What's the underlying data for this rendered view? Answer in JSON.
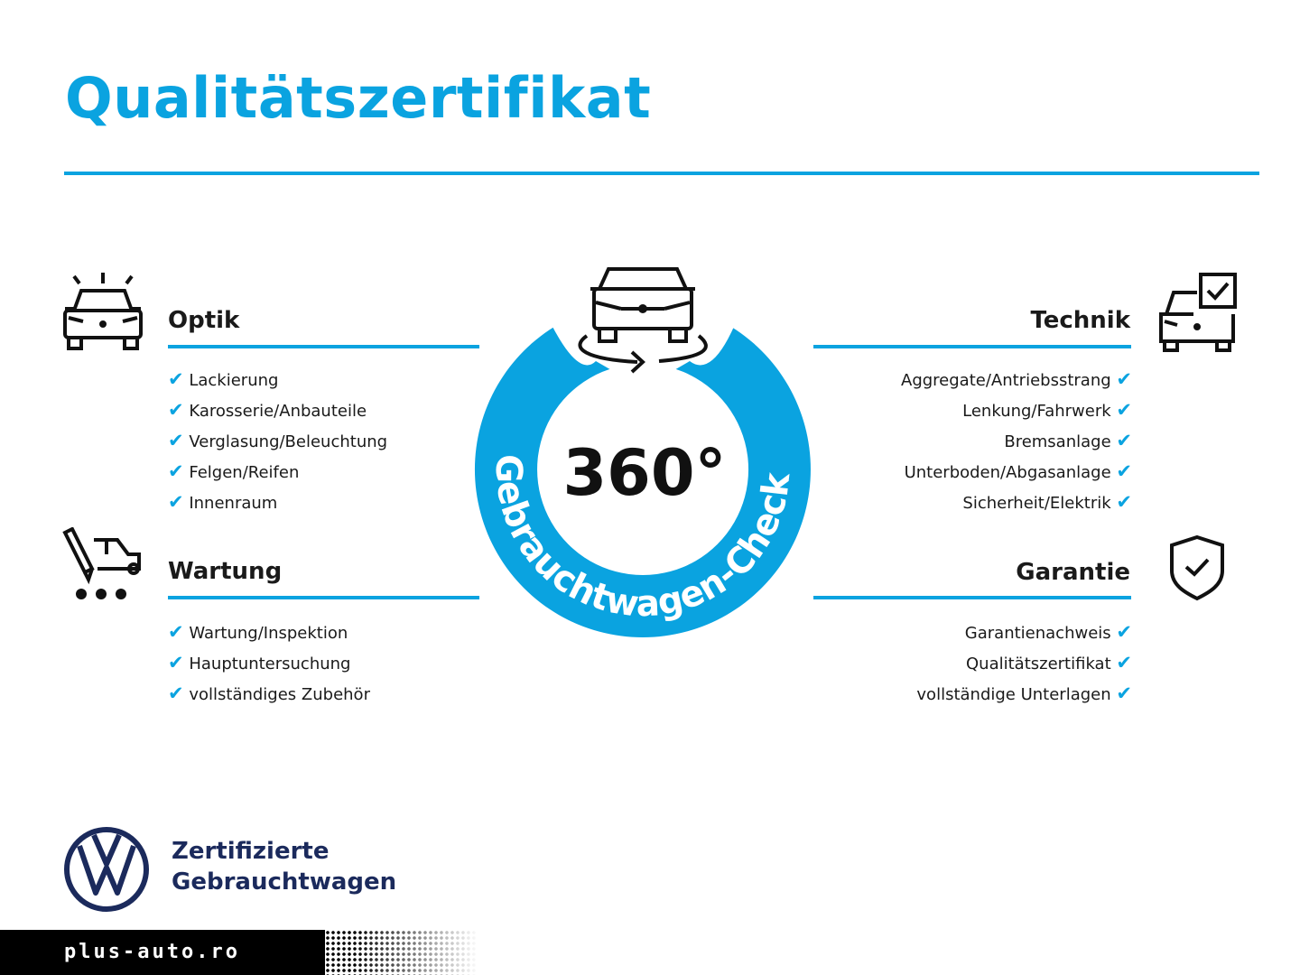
{
  "title": "Qualitätszertifikat",
  "accent_color": "#0aa3e0",
  "center": {
    "degrees": "360°",
    "arc_text": "Gebrauchtwagen-Check"
  },
  "sections": {
    "optik": {
      "title": "Optik",
      "icon": "car-headlights-icon",
      "items": [
        "Lackierung",
        "Karosserie/Anbauteile",
        "Verglasung/Beleuchtung",
        "Felgen/Reifen",
        "Innenraum"
      ]
    },
    "wartung": {
      "title": "Wartung",
      "icon": "car-service-icon",
      "items": [
        "Wartung/Inspektion",
        "Hauptuntersuchung",
        "vollständiges Zubehör"
      ]
    },
    "technik": {
      "title": "Technik",
      "icon": "car-checkbox-icon",
      "items": [
        "Aggregate/Antriebsstrang",
        "Lenkung/Fahrwerk",
        "Bremsanlage",
        "Unterboden/Abgasanlage",
        "Sicherheit/Elektrik"
      ]
    },
    "garantie": {
      "title": "Garantie",
      "icon": "shield-check-icon",
      "items": [
        "Garantienachweis",
        "Qualitätszertifikat",
        "vollständige Unterlagen"
      ]
    }
  },
  "check_glyph": "✔",
  "brand": {
    "line1": "Zertifizierte",
    "line2": "Gebrauchtwagen"
  },
  "footer": {
    "site": "plus-auto.ro"
  }
}
